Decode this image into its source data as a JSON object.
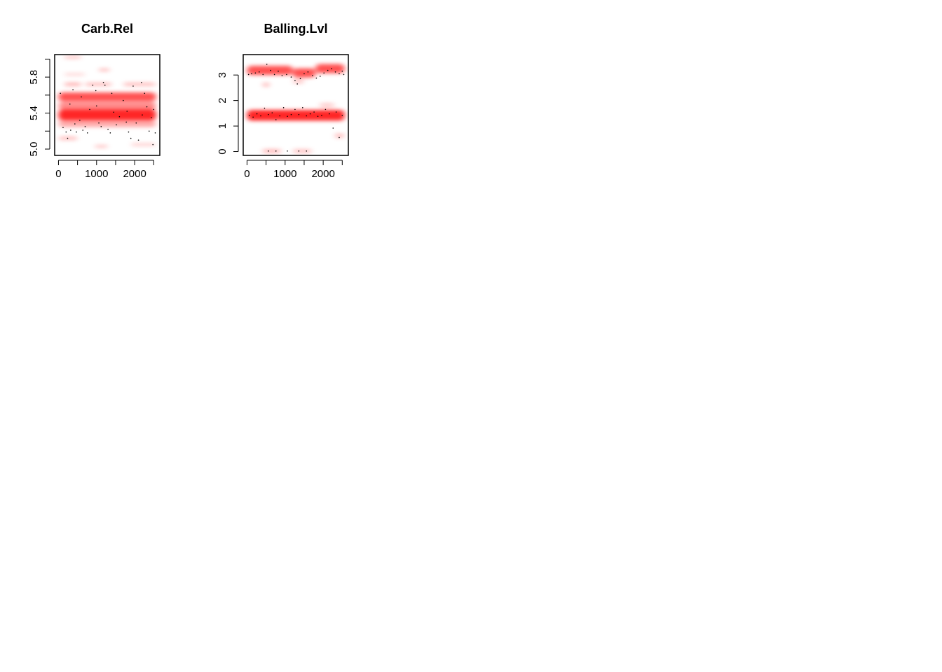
{
  "chart_data": [
    {
      "type": "scatter",
      "title": "Carb.Rel",
      "xlabel": "",
      "ylabel": "",
      "xlim": [
        -100,
        2660
      ],
      "ylim": [
        4.93,
        6.05
      ],
      "x_ticks": [
        0,
        500,
        1000,
        1500,
        2000,
        2500
      ],
      "x_tick_labels": [
        "0",
        "",
        "1000",
        "",
        "2000",
        ""
      ],
      "y_ticks": [
        5.0,
        5.2,
        5.4,
        5.6,
        5.8,
        6.0
      ],
      "y_tick_labels": [
        "5.0",
        "",
        "5.4",
        "",
        "5.8",
        ""
      ],
      "density_color": "#ff0000",
      "point_color": "#000000",
      "density_bands": [
        {
          "x": [
            0,
            2560
          ],
          "y": 5.38,
          "strength": 1.0,
          "height": 0.12
        },
        {
          "x": [
            0,
            2560
          ],
          "y": 5.58,
          "strength": 0.8,
          "height": 0.1
        },
        {
          "x": [
            0,
            2560
          ],
          "y": 5.48,
          "strength": 0.55,
          "height": 0.08
        },
        {
          "x": [
            0,
            2560
          ],
          "y": 5.28,
          "strength": 0.4,
          "height": 0.07
        },
        {
          "x": [
            150,
            600
          ],
          "y": 5.72,
          "strength": 0.35,
          "height": 0.04
        },
        {
          "x": [
            700,
            1400
          ],
          "y": 5.72,
          "strength": 0.3,
          "height": 0.04
        },
        {
          "x": [
            1700,
            2550
          ],
          "y": 5.72,
          "strength": 0.3,
          "height": 0.04
        },
        {
          "x": [
            1050,
            1350
          ],
          "y": 5.88,
          "strength": 0.35,
          "height": 0.03
        },
        {
          "x": [
            150,
            700
          ],
          "y": 5.83,
          "strength": 0.2,
          "height": 0.03
        },
        {
          "x": [
            150,
            600
          ],
          "y": 6.02,
          "strength": 0.3,
          "height": 0.03
        },
        {
          "x": [
            0,
            500
          ],
          "y": 5.12,
          "strength": 0.3,
          "height": 0.04
        },
        {
          "x": [
            950,
            1300
          ],
          "y": 5.03,
          "strength": 0.3,
          "height": 0.03
        },
        {
          "x": [
            1900,
            2550
          ],
          "y": 5.05,
          "strength": 0.25,
          "height": 0.03
        }
      ],
      "points": [
        [
          50,
          5.62
        ],
        [
          120,
          5.24
        ],
        [
          200,
          5.19
        ],
        [
          240,
          5.12
        ],
        [
          320,
          5.21
        ],
        [
          380,
          5.66
        ],
        [
          430,
          5.28
        ],
        [
          470,
          5.19
        ],
        [
          560,
          5.32
        ],
        [
          640,
          5.21
        ],
        [
          700,
          5.25
        ],
        [
          760,
          5.18
        ],
        [
          820,
          5.44
        ],
        [
          900,
          5.71
        ],
        [
          980,
          5.65
        ],
        [
          1060,
          5.29
        ],
        [
          1120,
          5.25
        ],
        [
          1180,
          5.74
        ],
        [
          1220,
          5.71
        ],
        [
          1300,
          5.22
        ],
        [
          1360,
          5.18
        ],
        [
          1450,
          5.41
        ],
        [
          1520,
          5.27
        ],
        [
          1600,
          5.36
        ],
        [
          1700,
          5.54
        ],
        [
          1780,
          5.3
        ],
        [
          1840,
          5.19
        ],
        [
          1900,
          5.12
        ],
        [
          1960,
          5.7
        ],
        [
          2040,
          5.29
        ],
        [
          2100,
          5.1
        ],
        [
          2180,
          5.74
        ],
        [
          2260,
          5.62
        ],
        [
          2320,
          5.47
        ],
        [
          2380,
          5.2
        ],
        [
          2440,
          5.35
        ],
        [
          2500,
          5.44
        ],
        [
          2540,
          5.18
        ],
        [
          300,
          5.5
        ],
        [
          600,
          5.58
        ],
        [
          1000,
          5.48
        ],
        [
          1400,
          5.62
        ],
        [
          1800,
          5.42
        ],
        [
          2200,
          5.38
        ],
        [
          2480,
          5.05
        ]
      ]
    },
    {
      "type": "scatter",
      "title": "Balling.Lvl",
      "xlabel": "",
      "ylabel": "",
      "xlim": [
        -100,
        2660
      ],
      "ylim": [
        -0.15,
        3.8
      ],
      "x_ticks": [
        0,
        500,
        1000,
        1500,
        2000,
        2500
      ],
      "x_tick_labels": [
        "0",
        "",
        "1000",
        "",
        "2000",
        ""
      ],
      "y_ticks": [
        0,
        1,
        2,
        3
      ],
      "y_tick_labels": [
        "0",
        "1",
        "2",
        "3"
      ],
      "density_color": "#ff0000",
      "point_color": "#000000",
      "density_bands": [
        {
          "x": [
            0,
            2560
          ],
          "y": 1.42,
          "strength": 1.0,
          "height": 0.42
        },
        {
          "x": [
            0,
            1200
          ],
          "y": 3.18,
          "strength": 0.8,
          "height": 0.36
        },
        {
          "x": [
            1200,
            1800
          ],
          "y": 3.08,
          "strength": 0.8,
          "height": 0.36
        },
        {
          "x": [
            1800,
            2560
          ],
          "y": 3.25,
          "strength": 0.8,
          "height": 0.36
        },
        {
          "x": [
            400,
            900
          ],
          "y": 0.02,
          "strength": 0.35,
          "height": 0.14
        },
        {
          "x": [
            1200,
            1700
          ],
          "y": 0.02,
          "strength": 0.3,
          "height": 0.14
        },
        {
          "x": [
            2300,
            2560
          ],
          "y": 0.62,
          "strength": 0.3,
          "height": 0.18
        },
        {
          "x": [
            400,
            600
          ],
          "y": 2.62,
          "strength": 0.3,
          "height": 0.18
        },
        {
          "x": [
            1200,
            1500
          ],
          "y": 2.75,
          "strength": 0.25,
          "height": 0.18
        },
        {
          "x": [
            1900,
            2300
          ],
          "y": 1.82,
          "strength": 0.25,
          "height": 0.16
        }
      ],
      "points": [
        [
          40,
          3.02
        ],
        [
          120,
          3.05
        ],
        [
          220,
          3.08
        ],
        [
          320,
          3.12
        ],
        [
          420,
          3.02
        ],
        [
          520,
          3.42
        ],
        [
          620,
          3.18
        ],
        [
          720,
          3.02
        ],
        [
          820,
          3.15
        ],
        [
          920,
          2.98
        ],
        [
          1040,
          3.02
        ],
        [
          1160,
          2.92
        ],
        [
          1260,
          2.78
        ],
        [
          1320,
          2.65
        ],
        [
          1400,
          2.86
        ],
        [
          1500,
          3.05
        ],
        [
          1600,
          3.12
        ],
        [
          1720,
          2.98
        ],
        [
          1820,
          2.88
        ],
        [
          1920,
          2.95
        ],
        [
          2020,
          3.08
        ],
        [
          2120,
          3.18
        ],
        [
          2220,
          3.25
        ],
        [
          2320,
          3.12
        ],
        [
          2420,
          3.05
        ],
        [
          2500,
          3.15
        ],
        [
          2540,
          3.02
        ],
        [
          60,
          1.42
        ],
        [
          160,
          1.35
        ],
        [
          260,
          1.48
        ],
        [
          360,
          1.4
        ],
        [
          460,
          1.7
        ],
        [
          560,
          1.45
        ],
        [
          660,
          1.52
        ],
        [
          760,
          1.25
        ],
        [
          860,
          1.4
        ],
        [
          960,
          1.72
        ],
        [
          1060,
          1.38
        ],
        [
          1160,
          1.45
        ],
        [
          1260,
          1.65
        ],
        [
          1360,
          1.45
        ],
        [
          1460,
          1.72
        ],
        [
          1560,
          1.4
        ],
        [
          1660,
          1.48
        ],
        [
          1760,
          1.55
        ],
        [
          1860,
          1.38
        ],
        [
          1960,
          1.42
        ],
        [
          2060,
          1.65
        ],
        [
          2160,
          1.48
        ],
        [
          2260,
          0.92
        ],
        [
          2340,
          1.55
        ],
        [
          2420,
          0.55
        ],
        [
          2500,
          1.42
        ],
        [
          560,
          0.02
        ],
        [
          760,
          0.02
        ],
        [
          1060,
          0.02
        ],
        [
          1360,
          0.02
        ],
        [
          1560,
          0.02
        ]
      ]
    }
  ]
}
